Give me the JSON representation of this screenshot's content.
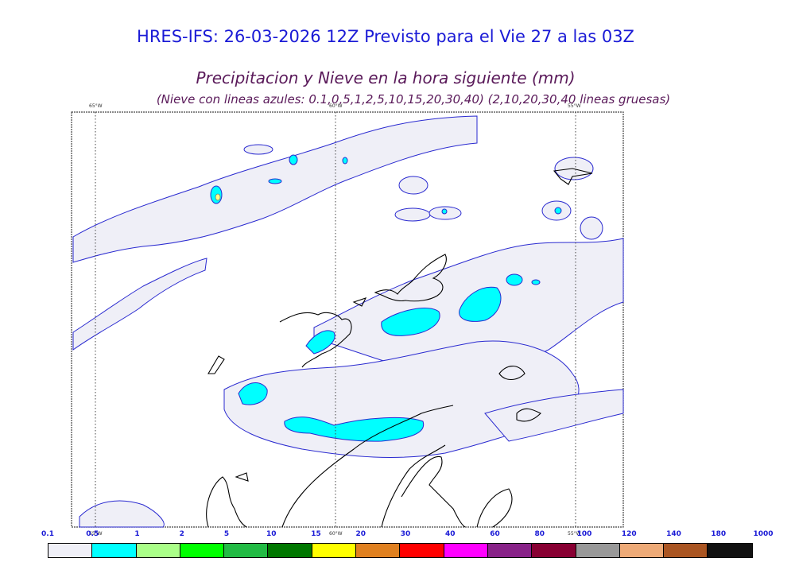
{
  "header": {
    "title": "HRES-IFS: 26-03-2026 12Z Previsto para el Vie 27 a las 03Z",
    "subtitle": "Precipitacion y Nieve en la hora siguiente (mm)",
    "note": "(Nieve con lineas azules: 0.1,0,5,1,2,5,10,15,20,30,40)  (2,10,20,30,40 lineas gruesas)"
  },
  "map": {
    "longitude_labels": [
      "65°W",
      "60°W",
      "55°W"
    ]
  },
  "legend": {
    "ticks": [
      "0.1",
      "0.5",
      "1",
      "2",
      "5",
      "10",
      "15",
      "20",
      "30",
      "40",
      "60",
      "80",
      "100",
      "120",
      "140",
      "180",
      "1000"
    ],
    "colors": [
      "#efeff7",
      "#00ffff",
      "#aaff88",
      "#00ff00",
      "#22bb44",
      "#007700",
      "#ffff00",
      "#e08020",
      "#ff0000",
      "#ff00ff",
      "#882288",
      "#880033",
      "#999999",
      "#eeaa77",
      "#aa5522",
      "#111111"
    ]
  }
}
